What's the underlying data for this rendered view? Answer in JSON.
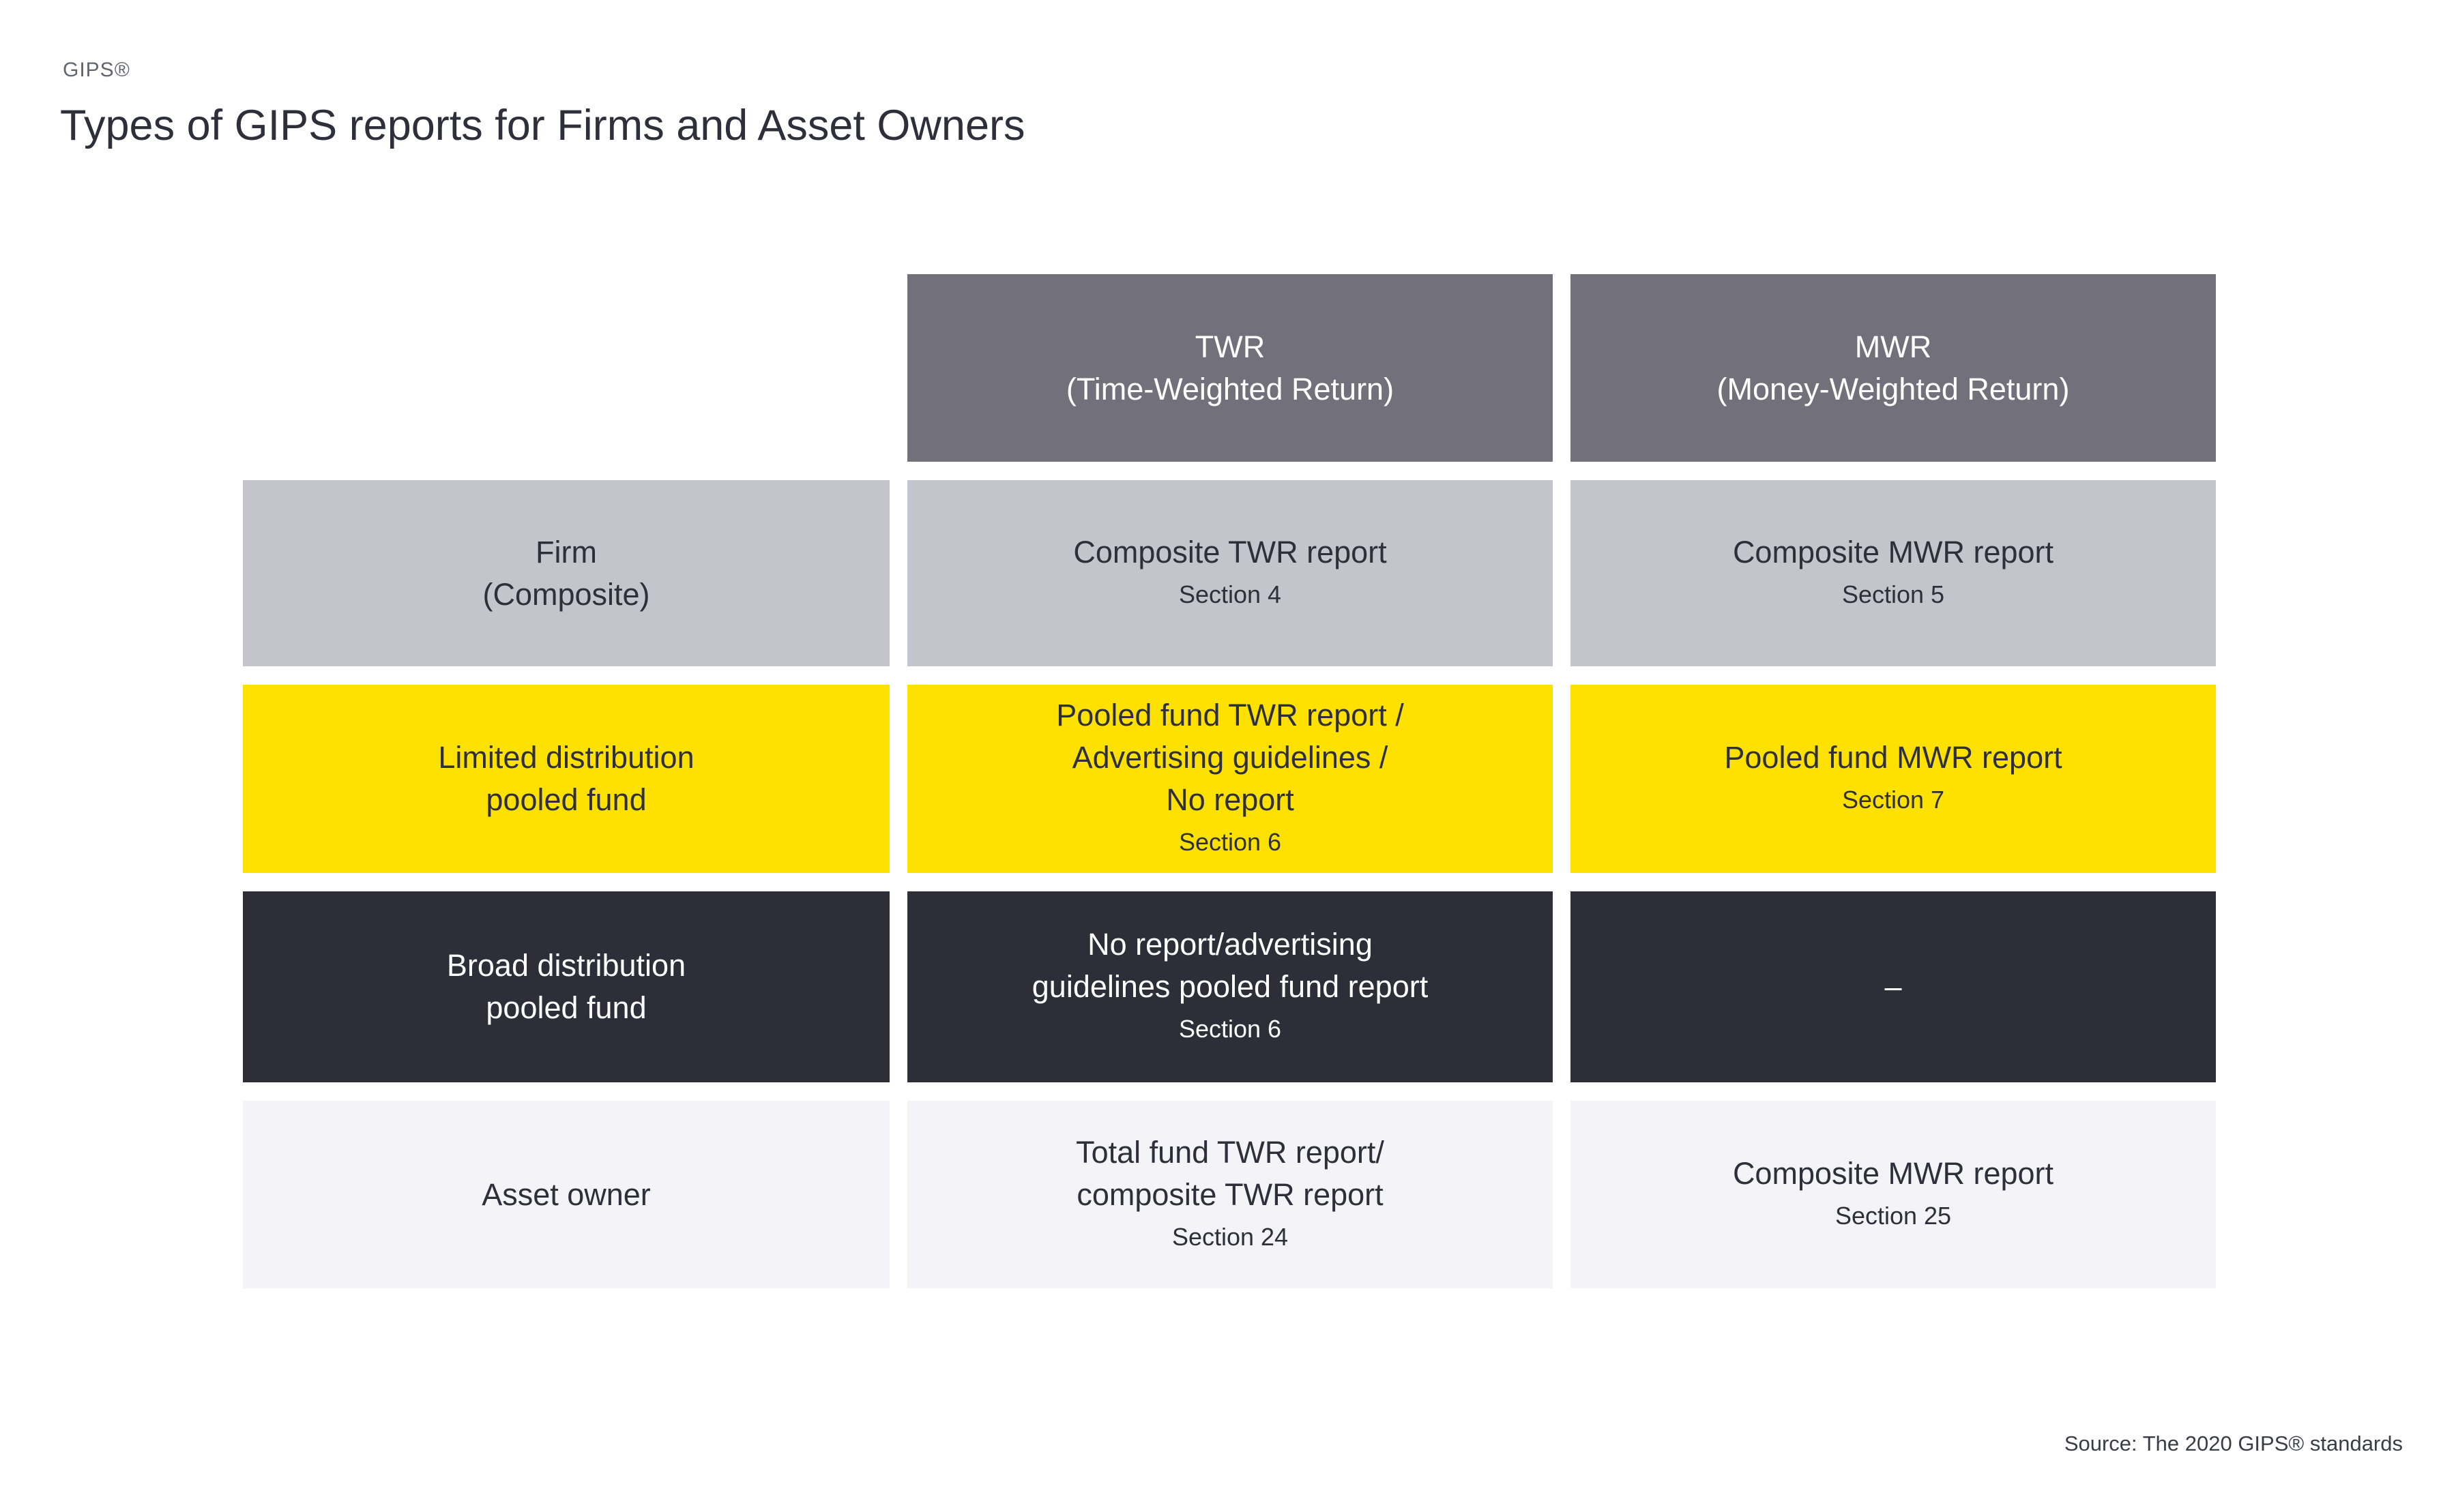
{
  "page": {
    "brand_label": "GIPS®",
    "title": "Types of GIPS reports for Firms and Asset Owners",
    "source": "Source: The 2020 GIPS® standards"
  },
  "colors": {
    "header_bg": "#72717b",
    "row_gray_bg": "#c4c4cc",
    "row_yellow_bg": "#ffe100",
    "row_dark_bg": "#2d2e38",
    "row_light_bg": "#f4f4f8",
    "text_dark": "#2e2f3a",
    "text_light": "#ffffff"
  },
  "table": {
    "column_headers": [
      {
        "line1": "TWR",
        "line2": "(Time-Weighted Return)"
      },
      {
        "line1": "MWR",
        "line2": "(Money-Weighted Return)"
      }
    ],
    "rows": [
      {
        "row_label": {
          "line1": "Firm",
          "line2": "(Composite)"
        },
        "twr": {
          "line1": "Composite TWR report",
          "section": "Section 4"
        },
        "mwr": {
          "line1": "Composite MWR report",
          "section": "Section 5"
        }
      },
      {
        "row_label": {
          "line1": "Limited distribution",
          "line2": "pooled fund"
        },
        "twr": {
          "line1": "Pooled fund TWR report /",
          "line2": "Advertising guidelines /",
          "line3": "No report",
          "section": "Section 6"
        },
        "mwr": {
          "line1": "Pooled fund MWR report",
          "section": "Section 7"
        }
      },
      {
        "row_label": {
          "line1": "Broad distribution",
          "line2": "pooled fund"
        },
        "twr": {
          "line1": "No report/advertising",
          "line2": "guidelines pooled fund report",
          "section": "Section 6"
        },
        "mwr": {
          "line1": "–"
        }
      },
      {
        "row_label": {
          "line1": "Asset owner"
        },
        "twr": {
          "line1": "Total fund TWR report/",
          "line2": "composite TWR report",
          "section": "Section 24"
        },
        "mwr": {
          "line1": "Composite MWR report",
          "section": "Section 25"
        }
      }
    ]
  }
}
